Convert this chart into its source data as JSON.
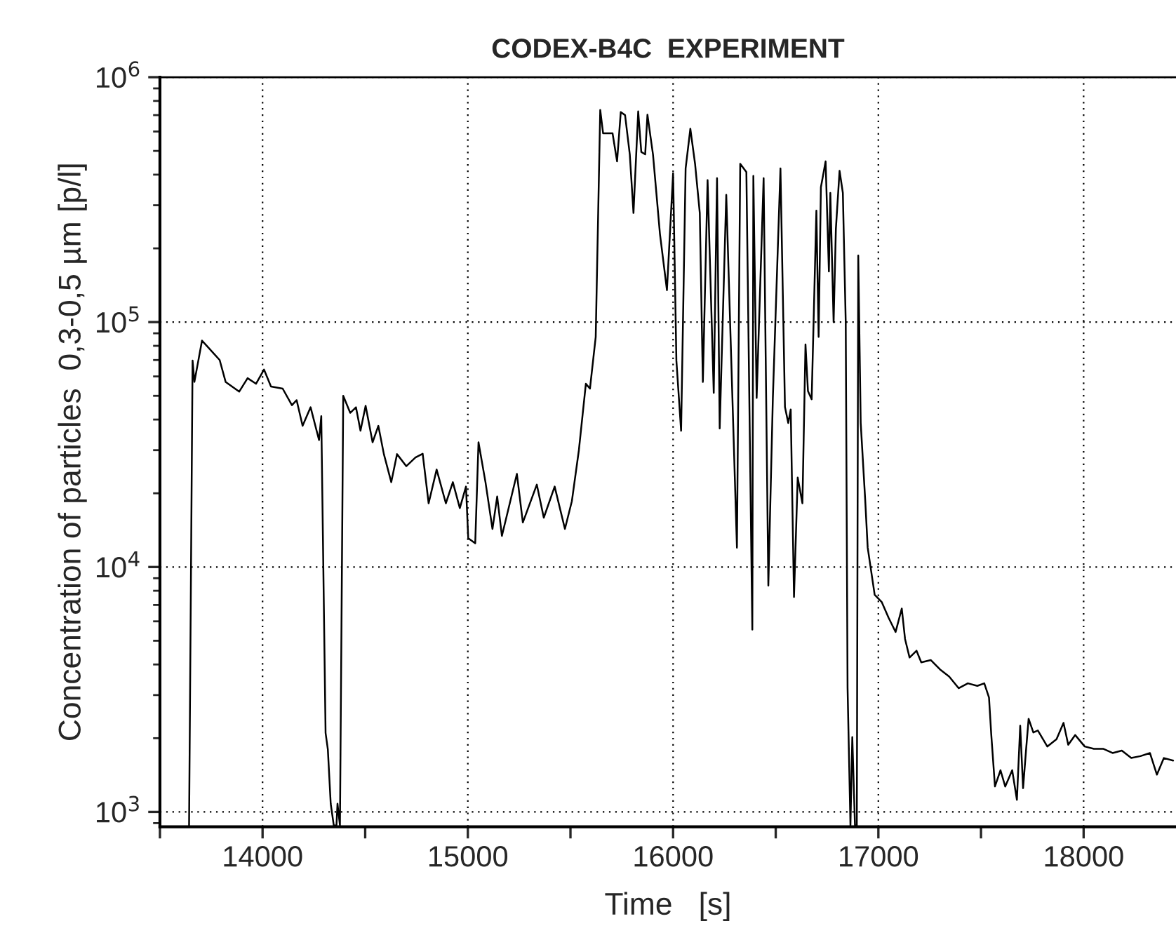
{
  "chart_data": {
    "type": "line",
    "title": "CODEX-B4C  EXPERIMENT",
    "xlabel": "Time   [s]",
    "ylabel": "Concentration of particles  0,3-0,5 µm [p/l]",
    "log": "y",
    "grid": true,
    "xlim": [
      13500,
      18450
    ],
    "ylim": [
      870,
      1000000
    ],
    "xticks": [
      {
        "value": 13500,
        "label": null
      },
      14000,
      {
        "value": 14500,
        "label": null
      },
      15000,
      {
        "value": 15500,
        "label": null
      },
      16000,
      {
        "value": 16500,
        "label": null
      },
      17000,
      {
        "value": 17500,
        "label": null
      },
      18000
    ],
    "yticks": [
      {
        "value": 1000,
        "label": "10$^{3}$"
      },
      {
        "value": 10000,
        "label": "10$^{4}$"
      },
      {
        "value": 100000,
        "label": "10$^{5}$"
      },
      {
        "value": 1000000,
        "label": "10$^{6}$"
      }
    ],
    "series": [
      {
        "color": "#000000",
        "line_style": "solid",
        "x": [
          13642,
          13659,
          13668,
          13705,
          13734,
          13791,
          13820,
          13886,
          13927,
          13968,
          14007,
          14041,
          14098,
          14143,
          14166,
          14195,
          14234,
          14275,
          14286,
          14307,
          14318,
          14332,
          14347,
          14360,
          14365,
          14377,
          14393,
          14427,
          14455,
          14477,
          14502,
          14536,
          14564,
          14591,
          14627,
          14655,
          14700,
          14745,
          14780,
          14809,
          14848,
          14893,
          14927,
          14961,
          14991,
          15002,
          15036,
          15052,
          15086,
          15120,
          15143,
          15166,
          15239,
          15268,
          15336,
          15370,
          15423,
          15473,
          15507,
          15541,
          15575,
          15595,
          15623,
          15645,
          15659,
          15705,
          15727,
          15745,
          15766,
          15789,
          15807,
          15830,
          15845,
          15864,
          15875,
          15902,
          15936,
          15970,
          16000,
          16016,
          16039,
          16061,
          16084,
          16107,
          16130,
          16145,
          16168,
          16198,
          16214,
          16227,
          16259,
          16311,
          16327,
          16357,
          16386,
          16391,
          16407,
          16441,
          16464,
          16486,
          16523,
          16545,
          16561,
          16573,
          16589,
          16607,
          16630,
          16645,
          16657,
          16675,
          16698,
          16709,
          16720,
          16743,
          16759,
          16766,
          16782,
          16793,
          16811,
          16827,
          16841,
          16850,
          16864,
          16873,
          16886,
          16895,
          16902,
          16914,
          16936,
          16948,
          16982,
          17016,
          17050,
          17084,
          17114,
          17130,
          17152,
          17186,
          17209,
          17255,
          17300,
          17345,
          17391,
          17436,
          17482,
          17516,
          17539,
          17550,
          17568,
          17595,
          17618,
          17652,
          17675,
          17691,
          17705,
          17720,
          17732,
          17755,
          17777,
          17823,
          17868,
          17902,
          17925,
          17959,
          18005,
          18050,
          18095,
          18141,
          18186,
          18232,
          18277,
          18323,
          18357,
          18391,
          18436
        ],
        "values": [
          880,
          69700,
          57000,
          84000,
          79000,
          70000,
          57000,
          52000,
          59000,
          56000,
          64000,
          54600,
          53500,
          45800,
          48000,
          37700,
          44900,
          33000,
          41300,
          2100,
          1800,
          1080,
          880,
          880,
          1080,
          880,
          50000,
          42600,
          44900,
          36000,
          45500,
          32300,
          37700,
          28900,
          22200,
          28900,
          25800,
          28000,
          29000,
          18200,
          25000,
          18200,
          22200,
          17400,
          21300,
          13100,
          12500,
          32300,
          22200,
          14300,
          19400,
          13400,
          24000,
          15200,
          21700,
          15900,
          21300,
          14300,
          18600,
          30000,
          56000,
          53500,
          87000,
          735000,
          590000,
          590000,
          453000,
          720000,
          700000,
          484000,
          279000,
          725000,
          495000,
          484000,
          703000,
          484000,
          229000,
          135000,
          405000,
          69700,
          36000,
          424000,
          616000,
          443000,
          279000,
          57000,
          380000,
          51400,
          387000,
          36800,
          331000,
          12000,
          443000,
          410000,
          5550,
          395000,
          49000,
          387000,
          8400,
          49000,
          424000,
          45000,
          38700,
          44000,
          7550,
          23200,
          18200,
          81000,
          52300,
          48400,
          285000,
          87000,
          355000,
          453000,
          161000,
          337000,
          100000,
          240000,
          415000,
          337000,
          100000,
          3200,
          880,
          2020,
          880,
          880,
          187000,
          38700,
          18700,
          12000,
          7700,
          7200,
          6200,
          5430,
          6770,
          5080,
          4270,
          4550,
          4080,
          4170,
          3820,
          3570,
          3200,
          3350,
          3270,
          3350,
          2930,
          2070,
          1270,
          1480,
          1270,
          1480,
          1120,
          2250,
          1250,
          1810,
          2400,
          2110,
          2150,
          1850,
          1980,
          2310,
          1880,
          2060,
          1850,
          1810,
          1810,
          1740,
          1780,
          1660,
          1690,
          1740,
          1420,
          1660,
          1620
        ]
      }
    ]
  }
}
